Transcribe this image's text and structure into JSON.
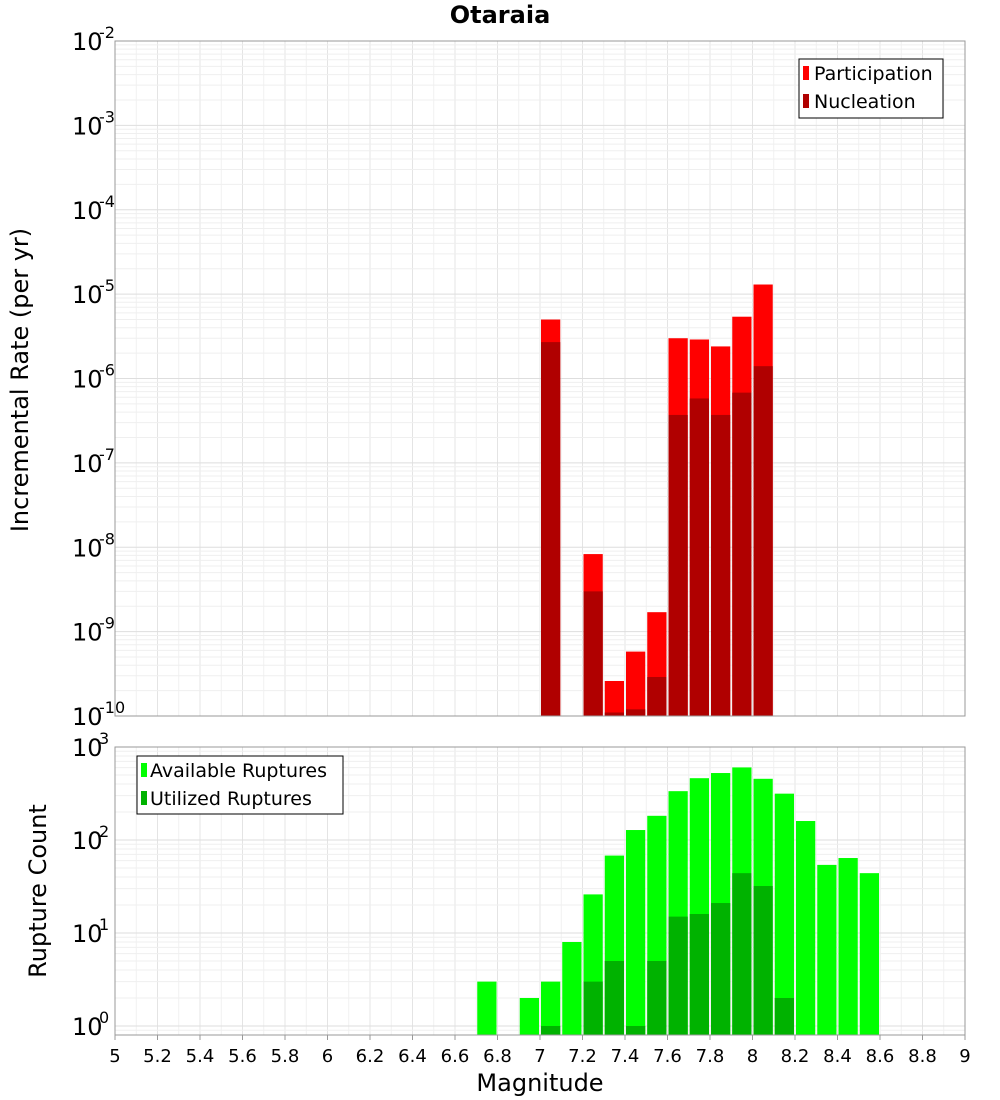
{
  "chart_data": [
    {
      "type": "bar",
      "title": "Otaraia",
      "xlabel": "",
      "ylabel": "Incremental Rate (per yr)",
      "yscale": "log",
      "ylim": [
        1e-10,
        0.01
      ],
      "xlim": [
        5,
        9
      ],
      "ytick_labels": [
        {
          "base": "10",
          "exp": "-10"
        },
        {
          "base": "10",
          "exp": "-9"
        },
        {
          "base": "10",
          "exp": "-8"
        },
        {
          "base": "10",
          "exp": "-7"
        },
        {
          "base": "10",
          "exp": "-6"
        },
        {
          "base": "10",
          "exp": "-5"
        },
        {
          "base": "10",
          "exp": "-4"
        },
        {
          "base": "10",
          "exp": "-3"
        },
        {
          "base": "10",
          "exp": "-2"
        }
      ],
      "legend_position": "top-right",
      "grid": true,
      "x": [
        7.05,
        7.25,
        7.35,
        7.45,
        7.55,
        7.65,
        7.75,
        7.85,
        7.95,
        8.05
      ],
      "series": [
        {
          "name": "Participation",
          "color": "#ff0000",
          "values": [
            5e-06,
            8.3e-09,
            2.6e-10,
            5.8e-10,
            1.7e-09,
            3e-06,
            2.9e-06,
            2.4e-06,
            5.4e-06,
            1.3e-05
          ]
        },
        {
          "name": "Nucleation",
          "color": "#b00000",
          "values": [
            2.7e-06,
            3e-09,
            1.1e-10,
            1.2e-10,
            2.9e-10,
            3.7e-07,
            5.8e-07,
            3.7e-07,
            6.8e-07,
            1.4e-06
          ]
        }
      ]
    },
    {
      "type": "bar",
      "title": "",
      "xlabel": "Magnitude",
      "ylabel": "Rupture Count",
      "yscale": "log",
      "ylim": [
        0.8,
        1000
      ],
      "xlim": [
        5,
        9
      ],
      "ytick_labels": [
        {
          "base": "10",
          "exp": "0"
        },
        {
          "base": "10",
          "exp": "1"
        },
        {
          "base": "10",
          "exp": "2"
        },
        {
          "base": "10",
          "exp": "3"
        }
      ],
      "xtick_labels": [
        "5",
        "5.2",
        "5.4",
        "5.6",
        "5.8",
        "6",
        "6.2",
        "6.4",
        "6.6",
        "6.8",
        "7",
        "7.2",
        "7.4",
        "7.6",
        "7.8",
        "8",
        "8.2",
        "8.4",
        "8.6",
        "8.8",
        "9"
      ],
      "legend_position": "top-left",
      "grid": true,
      "x": [
        6.75,
        6.95,
        7.05,
        7.15,
        7.25,
        7.35,
        7.45,
        7.55,
        7.65,
        7.75,
        7.85,
        7.95,
        8.05,
        8.15,
        8.25,
        8.35,
        8.45,
        8.55
      ],
      "series": [
        {
          "name": "Available Ruptures",
          "color": "#00ff00",
          "values": [
            3,
            2,
            3,
            8,
            26,
            68,
            128,
            182,
            335,
            462,
            525,
            603,
            455,
            315,
            160,
            54,
            64,
            44
          ]
        },
        {
          "name": "Utilized Ruptures",
          "color": "#00b200",
          "values": [
            0,
            0,
            1,
            0,
            3,
            5,
            1,
            5,
            15,
            16,
            21,
            44,
            32,
            2,
            0,
            0,
            0,
            0
          ]
        }
      ]
    }
  ]
}
